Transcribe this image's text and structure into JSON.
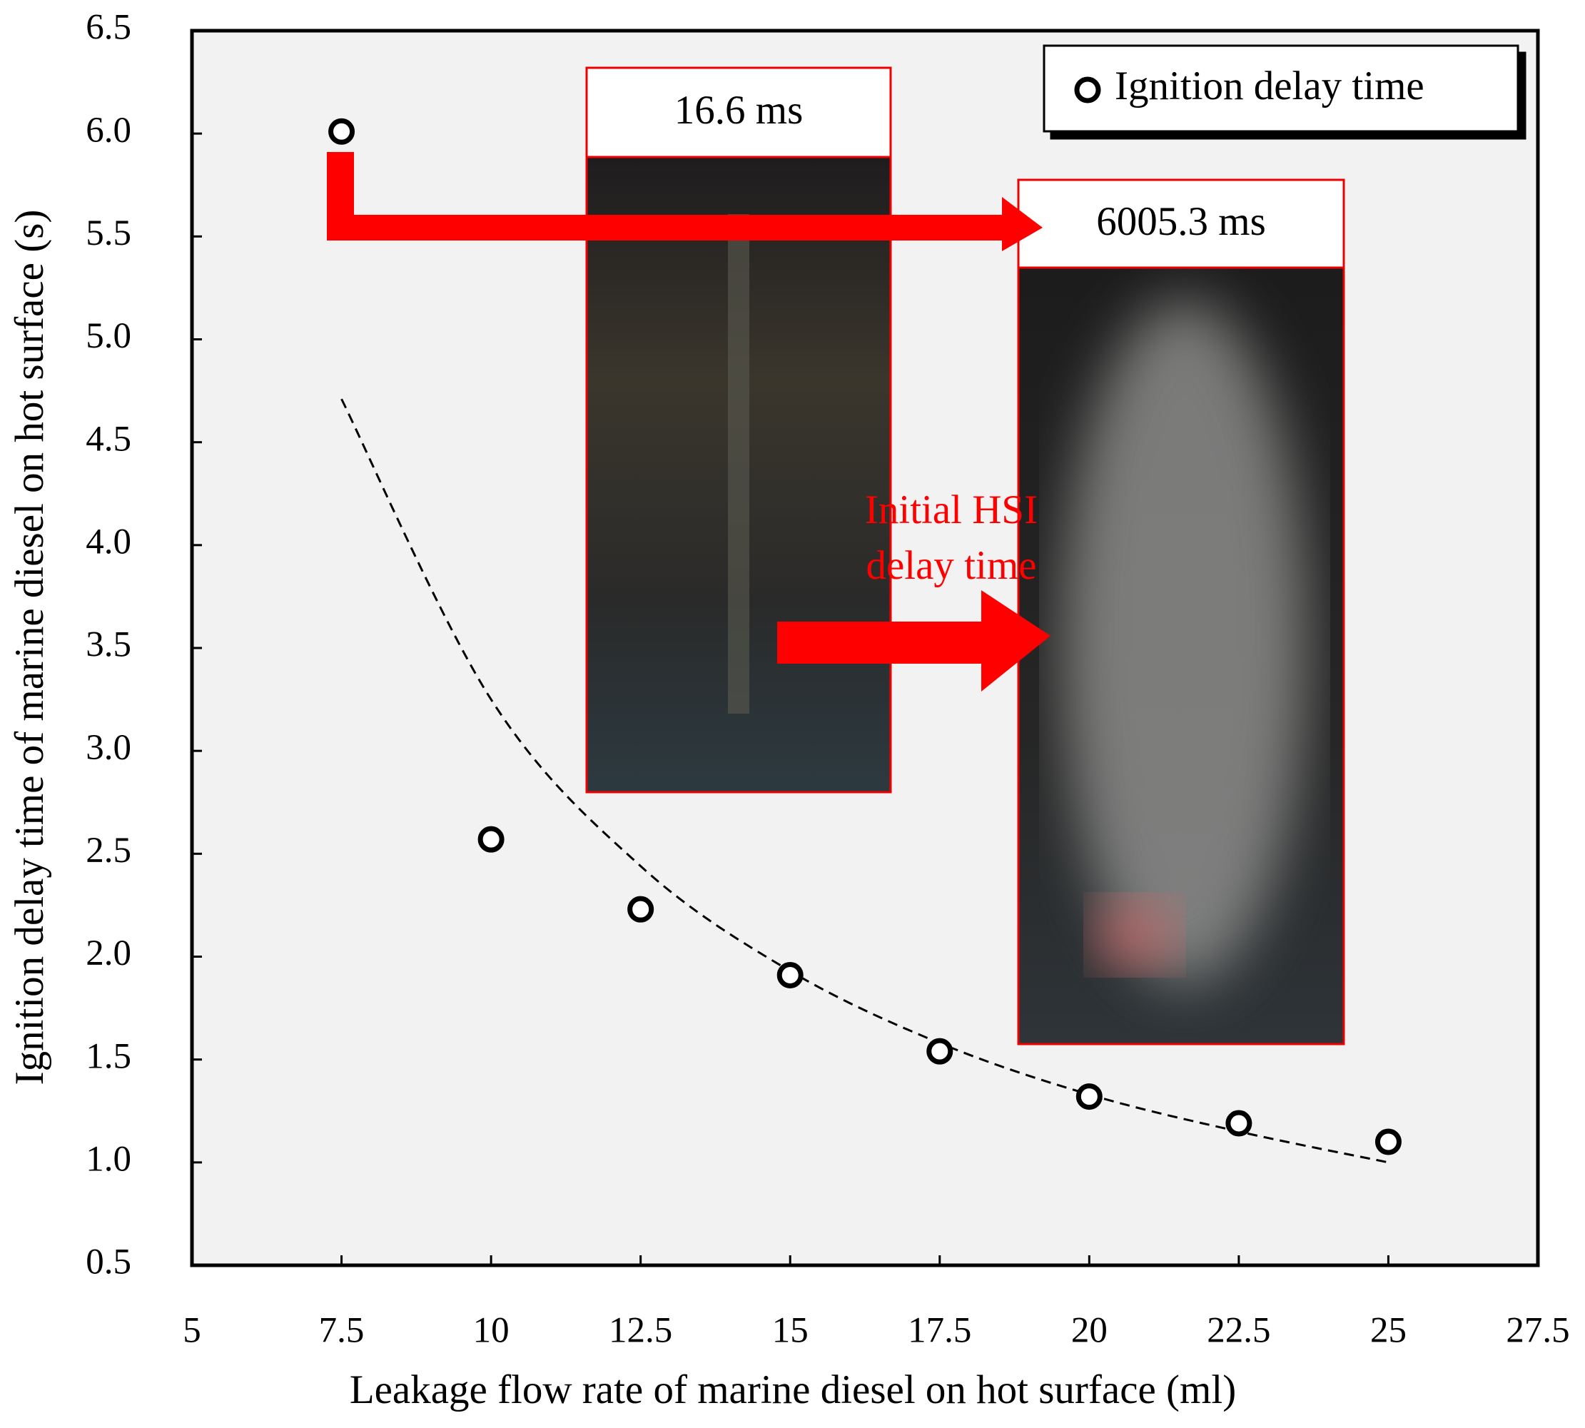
{
  "chart_data": {
    "type": "scatter",
    "x_label": "Leakage flow rate of marine diesel on hot surface  (ml)",
    "y_label": "Ignition delay time of marine diesel on hot surface (s)",
    "xlim": [
      5,
      27.5
    ],
    "xticks": [
      5,
      7.5,
      10,
      12.5,
      15,
      17.5,
      20,
      22.5,
      25,
      27.5
    ],
    "ylim": [
      0.5,
      6.5
    ],
    "yticks": [
      0.5,
      {
        "value": 1,
        "label": "1.0"
      },
      1.5,
      {
        "value": 2,
        "label": "2.0"
      },
      2.5,
      {
        "value": 3,
        "label": "3.0"
      },
      3.5,
      {
        "value": 4,
        "label": "4.0"
      },
      4.5,
      {
        "value": 5,
        "label": "5.0"
      },
      5.5,
      {
        "value": 6,
        "label": "6.0"
      },
      6.5
    ],
    "series": [
      {
        "name": "Ignition delay time",
        "color": "#000000",
        "x": [
          7.5,
          10,
          12.5,
          15,
          17.5,
          20,
          22.5,
          25
        ],
        "values": [
          6.01,
          2.57,
          2.23,
          1.91,
          1.54,
          1.32,
          1.19,
          1.1
        ]
      },
      {
        "color": "#000000",
        "x": [
          7.5,
          10,
          12.5,
          15,
          17.5,
          20,
          22.5,
          25
        ],
        "values": [
          4.71,
          3.25,
          2.44,
          1.93,
          1.58,
          1.33,
          1.15,
          1.0
        ]
      }
    ],
    "annotations": [
      "16.6 ms",
      "6005.3 ms",
      "Initial HSI",
      "delay time"
    ],
    "legend": "upper right"
  }
}
